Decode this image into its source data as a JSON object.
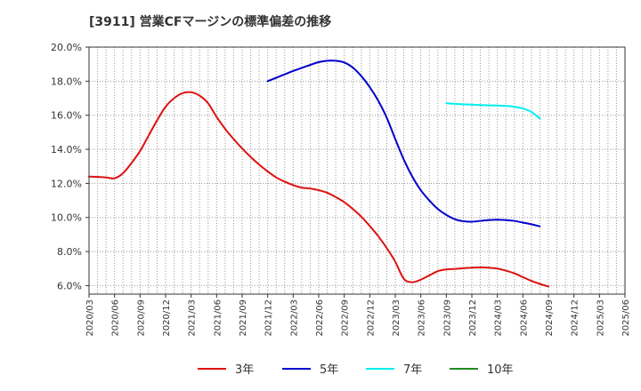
{
  "chart_data": {
    "type": "line",
    "title": "[3911]  営業CFマージンの標準偏差の推移",
    "xlabel": "",
    "ylabel": "",
    "ylim": [
      5.5,
      20.0
    ],
    "y_ticks": [
      6.0,
      8.0,
      10.0,
      12.0,
      14.0,
      16.0,
      18.0,
      20.0
    ],
    "y_tick_labels": [
      "6.0%",
      "8.0%",
      "10.0%",
      "12.0%",
      "14.0%",
      "16.0%",
      "18.0%",
      "20.0%"
    ],
    "x_range": [
      "2020/03",
      "2025/06"
    ],
    "x_tick_labels": [
      "2020/03",
      "2020/06",
      "2020/09",
      "2020/12",
      "2021/03",
      "2021/06",
      "2021/09",
      "2021/12",
      "2022/03",
      "2022/06",
      "2022/09",
      "2022/12",
      "2023/03",
      "2023/06",
      "2023/09",
      "2023/12",
      "2024/03",
      "2024/06",
      "2024/09",
      "2024/12",
      "2025/03",
      "2025/06"
    ],
    "grid": true,
    "legend_position": "bottom",
    "series": [
      {
        "name": "3年",
        "color": "#dd1111",
        "points": [
          [
            "2020/03",
            12.4
          ],
          [
            "2020/04",
            12.38
          ],
          [
            "2020/05",
            12.35
          ],
          [
            "2020/06",
            12.3
          ],
          [
            "2020/07",
            12.6
          ],
          [
            "2020/08",
            13.2
          ],
          [
            "2020/09",
            13.9
          ],
          [
            "2020/10",
            14.8
          ],
          [
            "2020/11",
            15.7
          ],
          [
            "2020/12",
            16.5
          ],
          [
            "2021/01",
            17.0
          ],
          [
            "2021/02",
            17.3
          ],
          [
            "2021/03",
            17.35
          ],
          [
            "2021/04",
            17.15
          ],
          [
            "2021/05",
            16.7
          ],
          [
            "2021/06",
            15.9
          ],
          [
            "2021/07",
            15.2
          ],
          [
            "2021/08",
            14.6
          ],
          [
            "2021/09",
            14.05
          ],
          [
            "2021/10",
            13.55
          ],
          [
            "2021/11",
            13.1
          ],
          [
            "2021/12",
            12.7
          ],
          [
            "2022/01",
            12.35
          ],
          [
            "2022/02",
            12.1
          ],
          [
            "2022/03",
            11.9
          ],
          [
            "2022/04",
            11.75
          ],
          [
            "2022/05",
            11.7
          ],
          [
            "2022/06",
            11.6
          ],
          [
            "2022/07",
            11.45
          ],
          [
            "2022/08",
            11.2
          ],
          [
            "2022/09",
            10.9
          ],
          [
            "2022/10",
            10.5
          ],
          [
            "2022/11",
            10.05
          ],
          [
            "2022/12",
            9.5
          ],
          [
            "2023/01",
            8.9
          ],
          [
            "2023/02",
            8.2
          ],
          [
            "2023/03",
            7.4
          ],
          [
            "2023/04",
            6.4
          ],
          [
            "2023/05",
            6.2
          ],
          [
            "2023/06",
            6.35
          ],
          [
            "2023/07",
            6.6
          ],
          [
            "2023/08",
            6.85
          ],
          [
            "2023/09",
            6.95
          ],
          [
            "2023/10",
            6.98
          ],
          [
            "2023/11",
            7.02
          ],
          [
            "2023/12",
            7.05
          ],
          [
            "2024/01",
            7.07
          ],
          [
            "2024/02",
            7.05
          ],
          [
            "2024/03",
            7.0
          ],
          [
            "2024/04",
            6.88
          ],
          [
            "2024/05",
            6.72
          ],
          [
            "2024/06",
            6.5
          ],
          [
            "2024/07",
            6.28
          ],
          [
            "2024/08",
            6.1
          ],
          [
            "2024/09",
            5.95
          ]
        ]
      },
      {
        "name": "5年",
        "color": "#0000cc",
        "points": [
          [
            "2021/12",
            18.0
          ],
          [
            "2022/01",
            18.2
          ],
          [
            "2022/02",
            18.4
          ],
          [
            "2022/03",
            18.6
          ],
          [
            "2022/04",
            18.78
          ],
          [
            "2022/05",
            18.95
          ],
          [
            "2022/06",
            19.12
          ],
          [
            "2022/07",
            19.2
          ],
          [
            "2022/08",
            19.2
          ],
          [
            "2022/09",
            19.1
          ],
          [
            "2022/10",
            18.8
          ],
          [
            "2022/11",
            18.3
          ],
          [
            "2022/12",
            17.65
          ],
          [
            "2023/01",
            16.85
          ],
          [
            "2023/02",
            15.85
          ],
          [
            "2023/03",
            14.6
          ],
          [
            "2023/04",
            13.4
          ],
          [
            "2023/05",
            12.4
          ],
          [
            "2023/06",
            11.6
          ],
          [
            "2023/07",
            11.0
          ],
          [
            "2023/08",
            10.5
          ],
          [
            "2023/09",
            10.15
          ],
          [
            "2023/10",
            9.9
          ],
          [
            "2023/11",
            9.78
          ],
          [
            "2023/12",
            9.75
          ],
          [
            "2024/01",
            9.8
          ],
          [
            "2024/02",
            9.85
          ],
          [
            "2024/03",
            9.87
          ],
          [
            "2024/04",
            9.85
          ],
          [
            "2024/05",
            9.8
          ],
          [
            "2024/06",
            9.7
          ],
          [
            "2024/07",
            9.6
          ],
          [
            "2024/08",
            9.48
          ]
        ]
      },
      {
        "name": "7年",
        "color": "#00eeee",
        "points": [
          [
            "2023/09",
            16.7
          ],
          [
            "2023/10",
            16.67
          ],
          [
            "2023/11",
            16.64
          ],
          [
            "2023/12",
            16.62
          ],
          [
            "2024/01",
            16.6
          ],
          [
            "2024/02",
            16.58
          ],
          [
            "2024/03",
            16.57
          ],
          [
            "2024/04",
            16.55
          ],
          [
            "2024/05",
            16.5
          ],
          [
            "2024/06",
            16.4
          ],
          [
            "2024/07",
            16.2
          ],
          [
            "2024/08",
            15.8
          ]
        ]
      },
      {
        "name": "10年",
        "color": "#228b22",
        "points": []
      }
    ]
  }
}
